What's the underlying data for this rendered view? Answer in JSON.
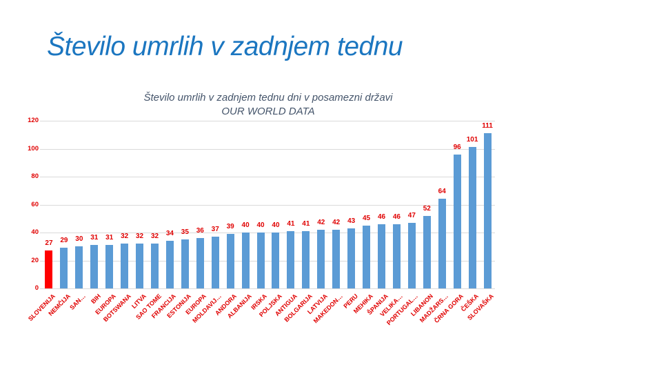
{
  "slide": {
    "title": "Število umrlih v zadnjem tednu"
  },
  "chart_data": {
    "type": "bar",
    "title": "Število umrlih v zadnjem tednu dni v posamezni državi",
    "subtitle": "OUR WORLD DATA",
    "categories": [
      "SLOVENIJA",
      "NEMČIJA",
      "SAN…",
      "BIH",
      "EUROPA",
      "BOTSWANA",
      "LITVA",
      "SAO TOME",
      "FRANCIJA",
      "ESTONIJA",
      "EUROPA",
      "MOLDAVIJ…",
      "ANDORA",
      "ALBANIJA",
      "IRSKA",
      "POLJSKA",
      "ANTIGUA",
      "BOLGARIJA",
      "LATVIJA",
      "MAKEDON…",
      "PERU",
      "MEHIKA",
      "ŠPANIJA",
      "VELIKA…",
      "PORTUGAL…",
      "LIBANON",
      "MADŽARS…",
      "ČRNA GORA",
      "ČEŠKA",
      "SLOVAŠKA"
    ],
    "values": [
      27,
      29,
      30,
      31,
      31,
      32,
      32,
      32,
      34,
      35,
      36,
      37,
      39,
      40,
      40,
      40,
      41,
      41,
      42,
      42,
      43,
      45,
      46,
      46,
      47,
      52,
      64,
      96,
      101,
      111
    ],
    "ylim": [
      0,
      120
    ],
    "ytick_step": 20,
    "grid": true,
    "legend": "none",
    "data_labels": true,
    "highlight_index": 0,
    "colors": {
      "bar": "#5b9bd5",
      "highlight_bar": "#ff0000",
      "label_text": "#e00000",
      "axis_text": "#e00000",
      "title_text": "#44546a",
      "main_title_text": "#1b76c0",
      "gridline": "#dadada"
    }
  }
}
